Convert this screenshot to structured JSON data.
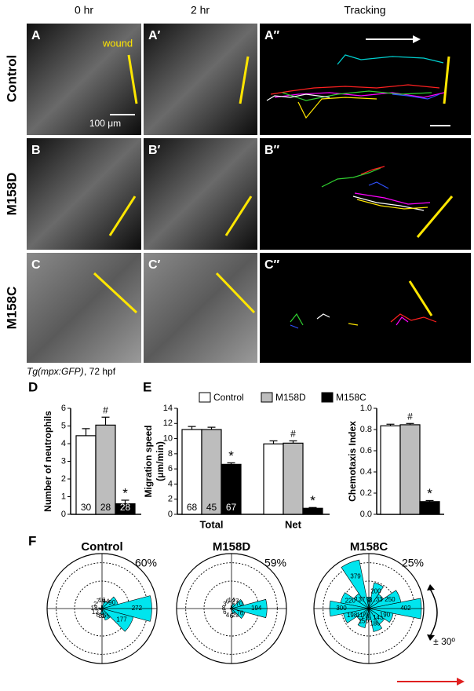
{
  "header": {
    "columns": [
      "0 hr",
      "2 hr",
      "Tracking"
    ],
    "rows": [
      "Control",
      "M158D",
      "M158C"
    ]
  },
  "panels": {
    "labels": [
      [
        "A",
        "A′",
        "A″"
      ],
      [
        "B",
        "B′",
        "B″"
      ],
      [
        "C",
        "C′",
        "C″"
      ]
    ],
    "wound_label": "wound",
    "scale_bar": "100 μm",
    "caption_gene": "Tg(mpx:GFP)",
    "caption_rest": ", 72 hpf"
  },
  "chart_data": [
    {
      "type": "bar",
      "panel": "D",
      "ylabel": "Number of neutrophils",
      "values": [
        4.45,
        5.05,
        0.6
      ],
      "errors": [
        0.4,
        0.45,
        0.2
      ],
      "colors": [
        "#ffffff",
        "#bdbdbd",
        "#000000"
      ],
      "n": [
        30,
        28,
        28
      ],
      "markers": [
        null,
        "#",
        "*"
      ],
      "ylim": [
        0,
        6
      ],
      "yticks": [
        0,
        1,
        2,
        3,
        4,
        5,
        6
      ]
    },
    {
      "type": "grouped-bar",
      "panel": "E",
      "ylabel": [
        "Migration speed",
        "(μm/min)"
      ],
      "categories": [
        "Total",
        "Net"
      ],
      "series": [
        {
          "name": "Control",
          "color": "#ffffff",
          "values": [
            11.2,
            9.3
          ],
          "errors": [
            0.4,
            0.4
          ],
          "n": [
            68,
            null
          ],
          "markers": [
            null,
            null
          ]
        },
        {
          "name": "M158D",
          "color": "#bdbdbd",
          "values": [
            11.2,
            9.4
          ],
          "errors": [
            0.3,
            0.3
          ],
          "n": [
            45,
            null
          ],
          "markers": [
            null,
            "#"
          ]
        },
        {
          "name": "M158C",
          "color": "#000000",
          "values": [
            6.6,
            0.8
          ],
          "errors": [
            0.2,
            0.1
          ],
          "n": [
            67,
            null
          ],
          "markers": [
            "*",
            "*"
          ]
        }
      ],
      "ylim": [
        0,
        14
      ],
      "yticks": [
        0,
        2,
        4,
        6,
        8,
        10,
        12,
        14
      ]
    },
    {
      "type": "bar",
      "ylabel": "Chemotaxis Index",
      "values": [
        0.835,
        0.845,
        0.12
      ],
      "errors": [
        0.015,
        0.012,
        0.01
      ],
      "colors": [
        "#ffffff",
        "#bdbdbd",
        "#000000"
      ],
      "markers": [
        null,
        "#",
        "*"
      ],
      "ylim": [
        0,
        1.0
      ],
      "yticks": [
        {
          "value": 0,
          "label": "0.0"
        },
        0.2,
        0.4,
        0.6,
        0.8,
        {
          "value": 1.0,
          "label": "1.0"
        }
      ]
    },
    {
      "type": "rose",
      "panel": "F",
      "color": "#00e5ee",
      "annotation": "± 30º",
      "plots": [
        {
          "title": "Control",
          "percent_label": "60%",
          "sector_width": 30,
          "x": [
            0,
            30,
            60,
            90,
            120,
            150,
            180,
            210,
            240,
            270,
            300,
            330
          ],
          "values": [
            272,
            90,
            44,
            16,
            7,
            2,
            18,
            12,
            6,
            32,
            65,
            177
          ],
          "rlim": [
            0,
            300
          ],
          "rticks": [
            150,
            250,
            300
          ]
        },
        {
          "title": "M158D",
          "percent_label": "59%",
          "sector_width": 30,
          "x": [
            0,
            30,
            60,
            90,
            120,
            150,
            180,
            210,
            240,
            270,
            300,
            330
          ],
          "values": [
            194,
            70,
            27,
            14,
            6,
            3,
            8,
            6,
            4,
            6,
            29,
            76
          ],
          "rlim": [
            0,
            300
          ],
          "rticks": [
            150,
            250,
            300
          ]
        },
        {
          "title": "M158C",
          "percent_label": "25%",
          "sector_width": 22.5,
          "x": [
            0,
            22.5,
            45,
            67.5,
            90,
            112.5,
            135,
            157.5,
            180,
            202.5,
            225,
            247.5,
            270,
            292.5,
            315,
            337.5
          ],
          "values": [
            402,
            250,
            133,
            200,
            88,
            379,
            137,
            220,
            300,
            198,
            110,
            150,
            87,
            180,
            143,
            190
          ],
          "rlim": [
            0,
            420
          ],
          "rticks": [
            210,
            350,
            420
          ]
        }
      ]
    }
  ]
}
